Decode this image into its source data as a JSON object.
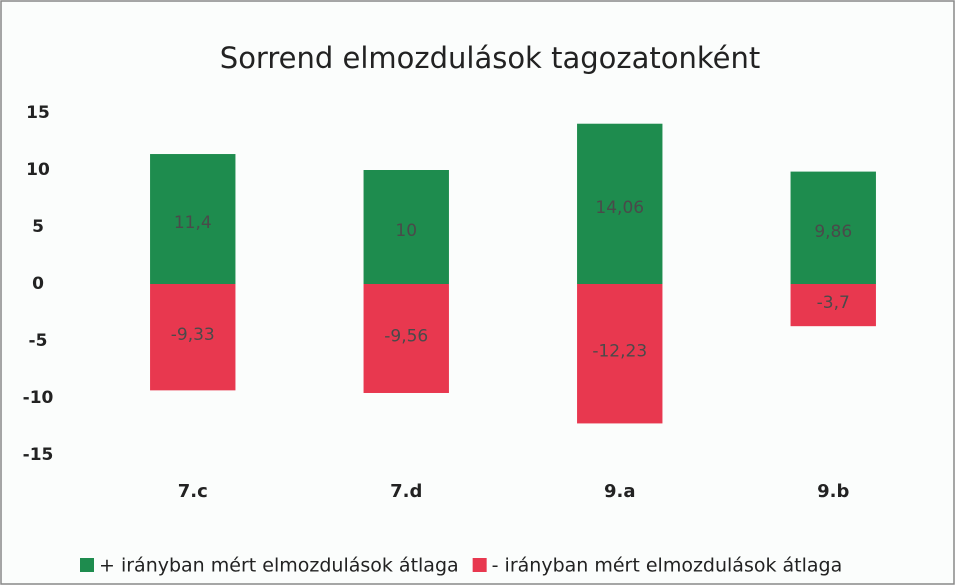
{
  "chart_data": {
    "type": "bar",
    "title": "Sorrend elmozdulások tagozatonként",
    "categories": [
      "7.c",
      "7.d",
      "9.a",
      "9.b"
    ],
    "series": [
      {
        "name": "+ irányban mért elmozdulások átlaga",
        "color": "#1e8c4e",
        "values": [
          11.4,
          10,
          14.06,
          9.86
        ],
        "value_labels": [
          "11,4",
          "10",
          "14,06",
          "9,86"
        ]
      },
      {
        "name": "- irányban mért elmozdulások átlaga",
        "color": "#e8384f",
        "values": [
          -9.33,
          -9.56,
          -12.23,
          -3.7
        ],
        "value_labels": [
          "-9,33",
          "-9,56",
          "-12,23",
          "-3,7"
        ]
      }
    ],
    "ylim": [
      -15,
      15
    ],
    "yticks": [
      15,
      10,
      5,
      0,
      -5,
      -10,
      -15
    ],
    "grid": false,
    "legend": "bottom"
  }
}
